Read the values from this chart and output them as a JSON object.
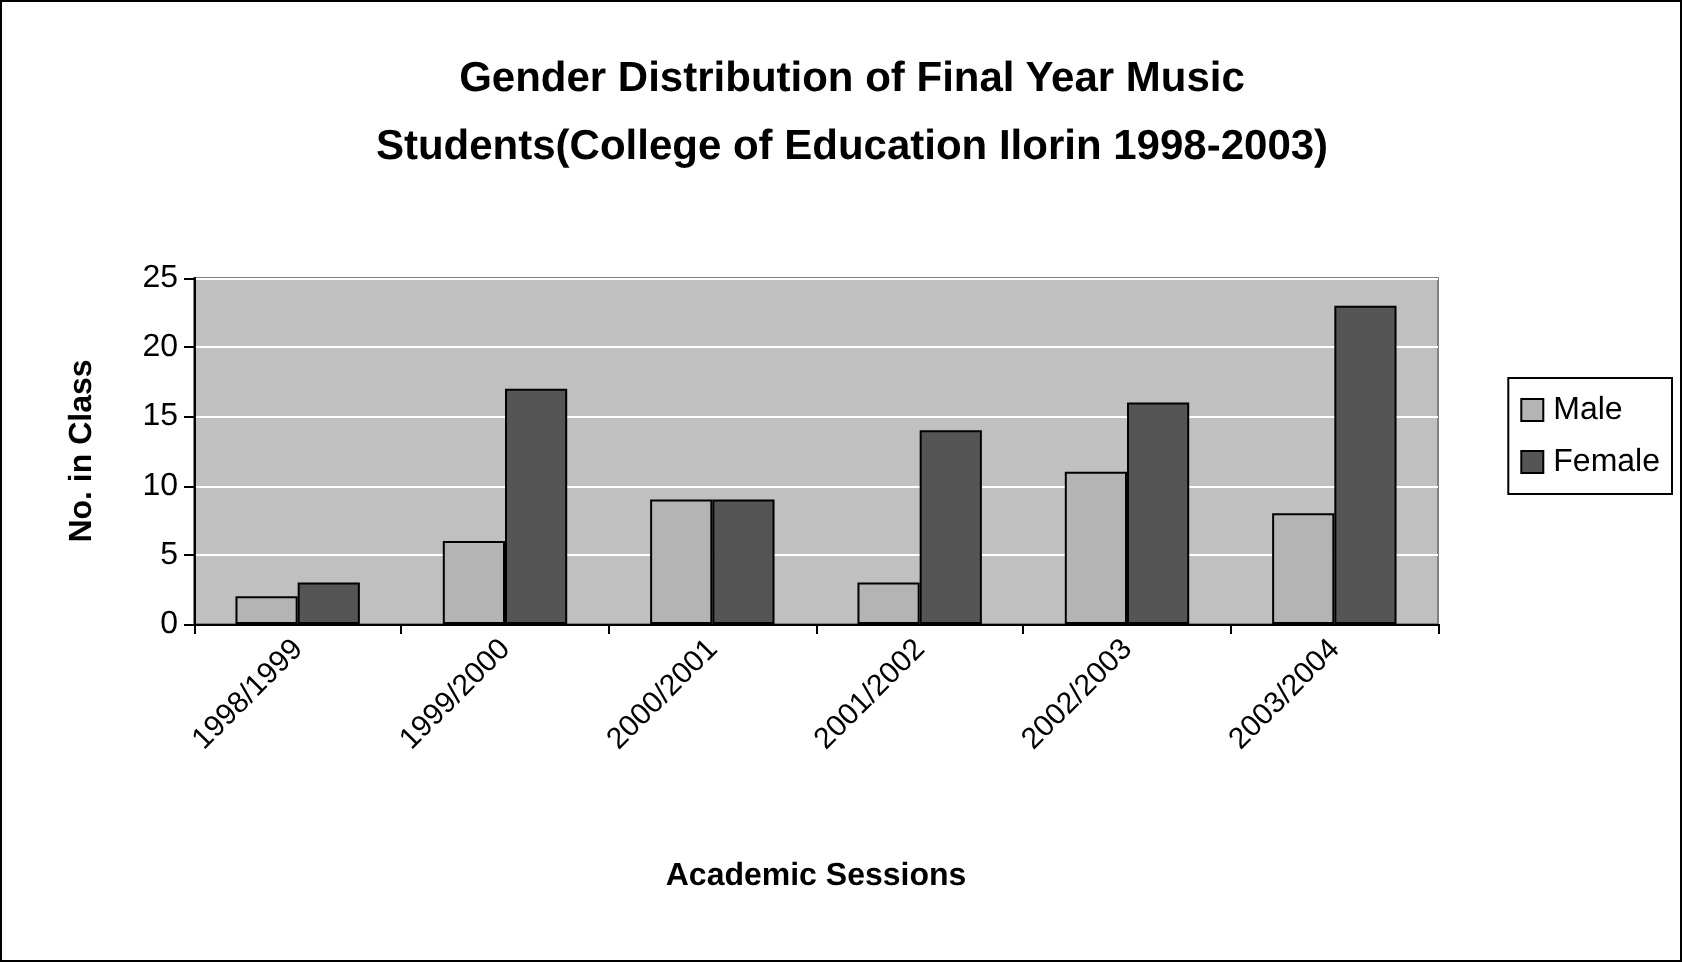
{
  "chart_data": {
    "type": "bar",
    "title": "Gender Distribution of Final Year Music\nStudents(College of Education Ilorin 1998-2003)",
    "xlabel": "Academic Sessions",
    "ylabel": "No. in Class",
    "categories": [
      "1998/1999",
      "1999/2000",
      "2000/2001",
      "2001/2002",
      "2002/2003",
      "2003/2004"
    ],
    "series": [
      {
        "name": "Male",
        "color": "#b4b4b4",
        "values": [
          2,
          6,
          9,
          3,
          11,
          8
        ]
      },
      {
        "name": "Female",
        "color": "#555555",
        "values": [
          3,
          17,
          9,
          14,
          16,
          23
        ]
      }
    ],
    "ylim": [
      0,
      25
    ],
    "yticks": [
      0,
      5,
      10,
      15,
      20,
      25
    ],
    "grid": "y",
    "legend": "right"
  }
}
